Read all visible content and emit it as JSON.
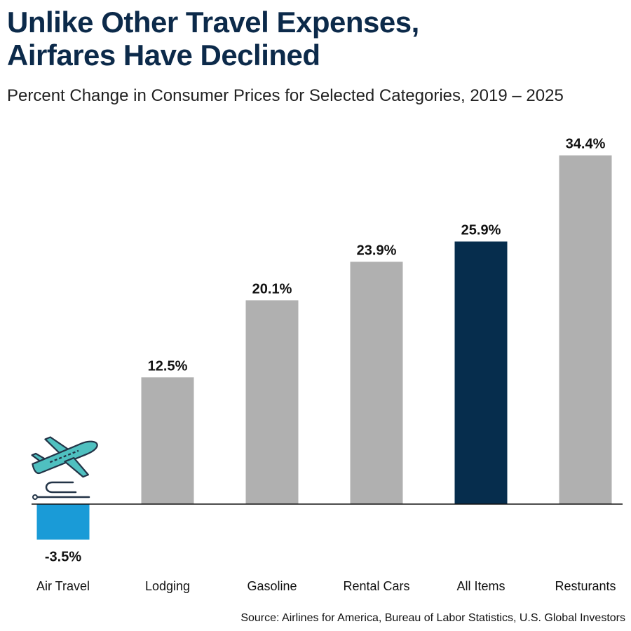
{
  "header": {
    "title_line1": "Unlike Other Travel Expenses,",
    "title_line2": "Airfares Have Declined",
    "subtitle": "Percent Change in Consumer Prices for Selected Categories, 2019 – 2025"
  },
  "source": "Source: Airlines for America, Bureau of Labor Statistics, U.S. Global Investors",
  "colors": {
    "negative": "#1a9bd7",
    "highlight": "#062d4d",
    "default": "#b0b0b0",
    "icon_fill": "#4fc0c0",
    "icon_stroke": "#233447"
  },
  "icon": "airplane-takeoff-icon",
  "chart_data": {
    "type": "bar",
    "title": "Unlike Other Travel Expenses, Airfares Have Declined",
    "subtitle": "Percent Change in Consumer Prices for Selected Categories, 2019 – 2025",
    "categories": [
      "Air Travel",
      "Lodging",
      "Gasoline",
      "Rental Cars",
      "All Items",
      "Resturants"
    ],
    "values": [
      -3.5,
      12.5,
      20.1,
      23.9,
      25.9,
      34.4
    ],
    "value_labels": [
      "-3.5%",
      "12.5%",
      "20.1%",
      "23.9%",
      "25.9%",
      "34.4%"
    ],
    "highlight": "All Items",
    "unit": "%",
    "grid": false,
    "legend": "none"
  }
}
